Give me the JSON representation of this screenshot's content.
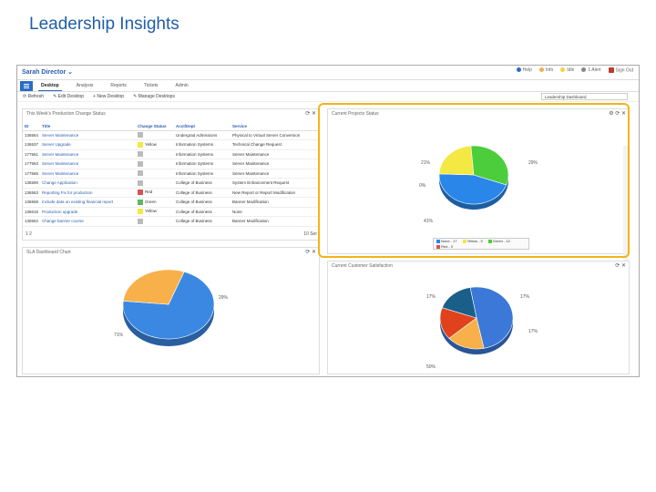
{
  "slide_title": "Leadership Insights",
  "topbar": {
    "user": "Sarah Director ⌄",
    "help": "Help",
    "status1": "Info",
    "status2": "Idle",
    "status3": "1 Alert",
    "signout": "Sign Out"
  },
  "nav": {
    "tabs": [
      "Desktop",
      "Analysis",
      "Reports",
      "Tickets",
      "Admin"
    ],
    "active": "Desktop"
  },
  "toolbar": {
    "refresh": "⟳ Refresh",
    "edit": "✎ Edit Desktop",
    "new": "+ New Desktop",
    "manage": "✎ Manage Desktops",
    "desktop_select": "Leadership Dashboard"
  },
  "panel1": {
    "title": "This Week's Production Change Status",
    "columns": [
      "ID",
      "Title",
      "Change Status",
      "Acct/Dept",
      "Service"
    ],
    "rows": [
      {
        "id": "136564",
        "title": "Server Maintenance",
        "status": "",
        "color": "#bbbbbb",
        "dept": "Undergrad Admissions",
        "service": "Physical to Virtual Server Conversion"
      },
      {
        "id": "136537",
        "title": "Server Upgrade",
        "status": "Yellow",
        "color": "#f4e842",
        "dept": "Information Systems",
        "service": "Technical Change Request"
      },
      {
        "id": "177561",
        "title": "Server Maintenance",
        "status": "",
        "color": "#bbbbbb",
        "dept": "Information Systems",
        "service": "Server Maintenance"
      },
      {
        "id": "177563",
        "title": "Server Maintenance",
        "status": "",
        "color": "#bbbbbb",
        "dept": "Information Systems",
        "service": "Server Maintenance"
      },
      {
        "id": "177565",
        "title": "Server Maintenance",
        "status": "",
        "color": "#bbbbbb",
        "dept": "Information Systems",
        "service": "Server Maintenance"
      },
      {
        "id": "136590",
        "title": "Change Application",
        "status": "",
        "color": "#bbbbbb",
        "dept": "College of Business",
        "service": "System Enhancement Request"
      },
      {
        "id": "136563",
        "title": "Reporting Fix for production",
        "status": "Red",
        "color": "#d9534f",
        "dept": "College of Business",
        "service": "New Report or Report Modification"
      },
      {
        "id": "136568",
        "title": "Include data on existing financial report",
        "status": "Green",
        "color": "#5cb85c",
        "dept": "College of Business",
        "service": "Banner Modification"
      },
      {
        "id": "136615",
        "title": "Production upgrade",
        "status": "Yellow",
        "color": "#f4e842",
        "dept": "College of Business",
        "service": "None"
      },
      {
        "id": "136562",
        "title": "Change banner course",
        "status": "",
        "color": "#bbbbbb",
        "dept": "College of Business",
        "service": "Banner Modification"
      }
    ],
    "pager": "1  2",
    "count": "10 Ser"
  },
  "panel2": {
    "title": "SLA Dashboard Chart",
    "labels": [
      "29%",
      "71%"
    ]
  },
  "panel3": {
    "title": "Current Projects Status",
    "labels": [
      "21%",
      "29%",
      "0%",
      "41%"
    ],
    "legend": [
      "None - 17",
      "Yellow - 9",
      "Green - 12",
      "Red - 0"
    ],
    "legend_colors": [
      "#2a86e8",
      "#f4e842",
      "#4ccd3c",
      "#d9534f"
    ]
  },
  "panel4": {
    "title": "Current Customer Satisfaction",
    "labels": [
      "17%",
      "17%",
      "17%",
      "50%"
    ]
  },
  "chart_data": [
    {
      "type": "pie",
      "title": "SLA Dashboard Chart",
      "categories": [
        "",
        ""
      ],
      "values": [
        71,
        29
      ],
      "colors": [
        "#3b88e3",
        "#f7b04a"
      ]
    },
    {
      "type": "pie",
      "title": "Current Projects Status",
      "categories": [
        "None",
        "Yellow",
        "Green",
        "Red"
      ],
      "values": [
        41,
        21,
        29,
        0
      ],
      "colors": [
        "#2a86e8",
        "#f4e842",
        "#4ccd3c",
        "#d9534f"
      ]
    },
    {
      "type": "pie",
      "title": "Current Customer Satisfaction",
      "categories": [
        "",
        "",
        "",
        ""
      ],
      "values": [
        50,
        17,
        17,
        17
      ],
      "colors": [
        "#3b78d8",
        "#f7b04a",
        "#e0431b",
        "#1a5e8a"
      ]
    }
  ]
}
